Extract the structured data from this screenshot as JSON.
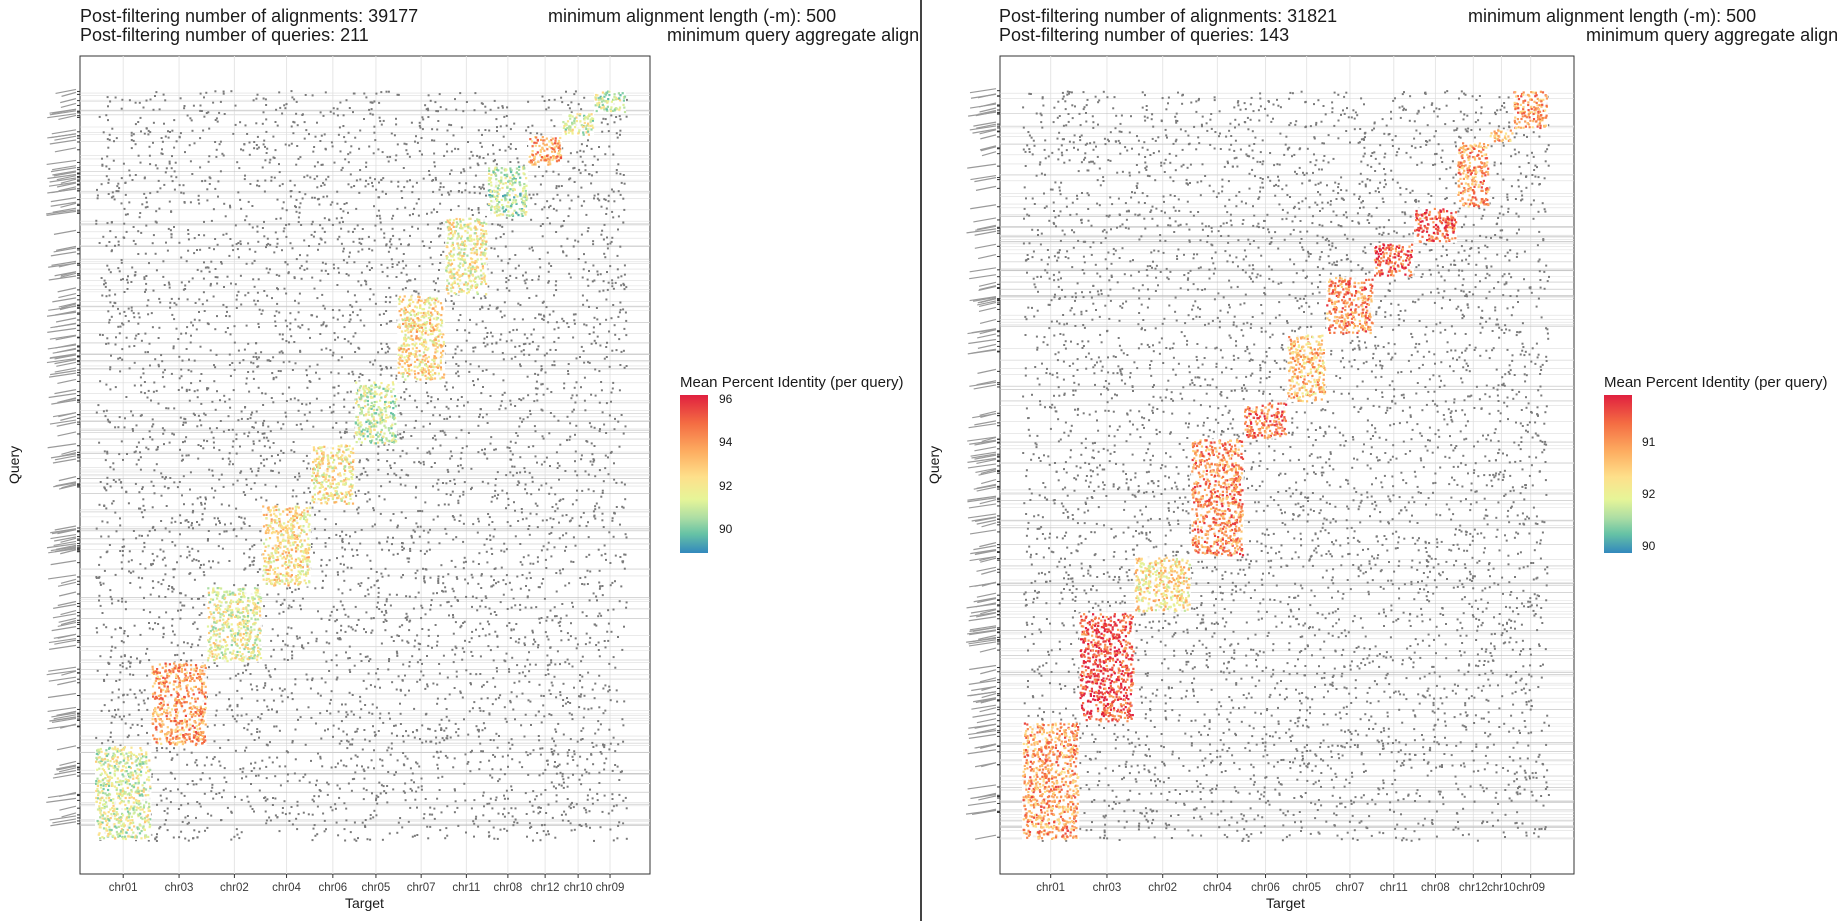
{
  "panels": [
    {
      "header": {
        "alignments": "Post-filtering number of alignments: 39177",
        "queries": "Post-filtering number of queries: 211",
        "min_length": "minimum alignment length (-m): 500",
        "min_aggregate": "minimum query aggregate alignm"
      },
      "legend": {
        "title": "Mean Percent Identity (per query)",
        "ticks": [
          "96",
          "94",
          "92",
          "90"
        ]
      },
      "xlabel": "Target",
      "ylabel": "Query"
    },
    {
      "header": {
        "alignments": "Post-filtering number of alignments: 31821",
        "queries": "Post-filtering number of queries: 143",
        "min_length": "minimum alignment length (-m): 500",
        "min_aggregate": "minimum query aggregate alignm"
      },
      "legend": {
        "title": "Mean Percent Identity (per query)",
        "ticks": [
          "91",
          "92",
          "90"
        ]
      },
      "xlabel": "Target",
      "ylabel": "Query"
    }
  ],
  "chart_data": [
    {
      "type": "scatter",
      "title": "Post-filtering number of alignments: 39177",
      "subtitle": "Post-filtering number of queries: 211",
      "xlabel": "Target",
      "ylabel": "Query",
      "categories": [
        "chr01",
        "chr03",
        "chr02",
        "chr04",
        "chr06",
        "chr05",
        "chr07",
        "chr11",
        "chr08",
        "chr12",
        "chr10",
        "chr09"
      ],
      "color_scale": {
        "label": "Mean Percent Identity (per query)",
        "range": [
          89,
          96
        ],
        "ticks": [
          90,
          92,
          94,
          96
        ],
        "low_color": "#3288bd",
        "high_color": "#e0203f"
      },
      "diagonal_blocks": [
        {
          "target": "chr01",
          "mean_identity": 91.5
        },
        {
          "target": "chr03",
          "mean_identity": 93.8
        },
        {
          "target": "chr02",
          "mean_identity": 91.8
        },
        {
          "target": "chr04",
          "mean_identity": 92.5
        },
        {
          "target": "chr06",
          "mean_identity": 92.3
        },
        {
          "target": "chr05",
          "mean_identity": 91.3
        },
        {
          "target": "chr07",
          "mean_identity": 92.6
        },
        {
          "target": "chr11",
          "mean_identity": 92.0
        },
        {
          "target": "chr08",
          "mean_identity": 91.0
        },
        {
          "target": "chr12",
          "mean_identity": 93.7
        },
        {
          "target": "chr10",
          "mean_identity": 91.4
        },
        {
          "target": "chr09",
          "mean_identity": 91.2
        }
      ]
    },
    {
      "type": "scatter",
      "title": "Post-filtering number of alignments: 31821",
      "subtitle": "Post-filtering number of queries: 143",
      "xlabel": "Target",
      "ylabel": "Query",
      "categories": [
        "chr01",
        "chr03",
        "chr02",
        "chr04",
        "chr06",
        "chr05",
        "chr07",
        "chr11",
        "chr08",
        "chr12",
        "chr10",
        "chr09"
      ],
      "color_scale": {
        "label": "Mean Percent Identity (per query)",
        "range": [
          89.8,
          91.8
        ],
        "ticks": [
          90,
          91,
          92
        ],
        "low_color": "#3288bd",
        "high_color": "#e0203f"
      },
      "diagonal_blocks": [
        {
          "target": "chr01",
          "mean_identity": 91.2
        },
        {
          "target": "chr03",
          "mean_identity": 91.6
        },
        {
          "target": "chr02",
          "mean_identity": 90.8
        },
        {
          "target": "chr04",
          "mean_identity": 91.3
        },
        {
          "target": "chr06",
          "mean_identity": 91.4
        },
        {
          "target": "chr05",
          "mean_identity": 91.0
        },
        {
          "target": "chr07",
          "mean_identity": 91.3
        },
        {
          "target": "chr11",
          "mean_identity": 91.5
        },
        {
          "target": "chr08",
          "mean_identity": 91.5
        },
        {
          "target": "chr12",
          "mean_identity": 91.2
        },
        {
          "target": "chr10",
          "mean_identity": 91.1
        },
        {
          "target": "chr09",
          "mean_identity": 91.2
        }
      ]
    }
  ]
}
